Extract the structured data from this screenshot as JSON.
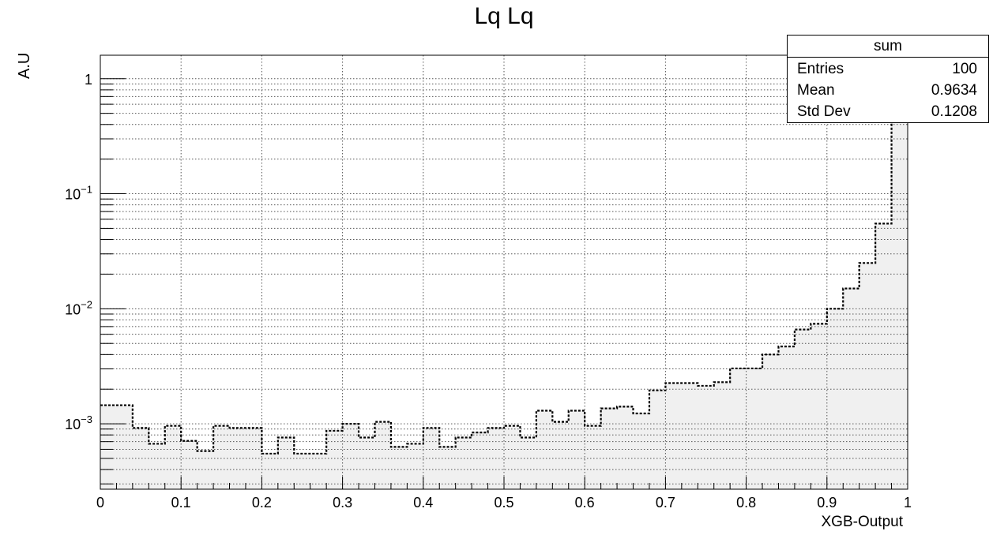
{
  "chart_data": {
    "type": "histogram",
    "title": "Lq Lq",
    "xlabel": "XGB-Output",
    "ylabel": "A.U",
    "xlim": [
      0,
      1
    ],
    "ylim": [
      0.00027,
      1.6
    ],
    "yscale": "log",
    "grid": true,
    "fill_color": "#f0f0f0",
    "line_style": "dashed",
    "bin_width": 0.02,
    "x_ticks": [
      "0",
      "0.1",
      "0.2",
      "0.3",
      "0.4",
      "0.5",
      "0.6",
      "0.7",
      "0.8",
      "0.9",
      "1"
    ],
    "y_ticks": [
      {
        "base": "1",
        "exp": ""
      },
      {
        "base": "10",
        "exp": "−1"
      },
      {
        "base": "10",
        "exp": "−2"
      },
      {
        "base": "10",
        "exp": "−3"
      }
    ],
    "bin_edges": [
      0,
      0.02,
      0.04,
      0.06,
      0.08,
      0.1,
      0.12,
      0.14,
      0.16,
      0.18,
      0.2,
      0.22,
      0.24,
      0.26,
      0.28,
      0.3,
      0.32,
      0.34,
      0.36,
      0.38,
      0.4,
      0.42,
      0.44,
      0.46,
      0.48,
      0.5,
      0.52,
      0.54,
      0.56,
      0.58,
      0.6,
      0.62,
      0.64,
      0.66,
      0.68,
      0.7,
      0.72,
      0.74,
      0.76,
      0.78,
      0.8,
      0.82,
      0.84,
      0.86,
      0.88,
      0.9,
      0.92,
      0.94,
      0.96,
      0.98,
      1.0
    ],
    "series": [
      {
        "name": "sum",
        "values": [
          0.00145,
          0.00145,
          0.00092,
          0.00067,
          0.00096,
          0.00071,
          0.00058,
          0.00096,
          0.00092,
          0.00092,
          0.00055,
          0.00076,
          0.00055,
          0.00055,
          0.00087,
          0.001,
          0.00076,
          0.00104,
          0.00063,
          0.00067,
          0.00092,
          0.00063,
          0.00076,
          0.00084,
          0.00092,
          0.00096,
          0.00076,
          0.0013,
          0.00104,
          0.0013,
          0.00096,
          0.00136,
          0.00141,
          0.00123,
          0.00195,
          0.00226,
          0.00226,
          0.00214,
          0.0023,
          0.00303,
          0.00303,
          0.004,
          0.0047,
          0.0066,
          0.0074,
          0.01,
          0.015,
          0.025,
          0.055,
          0.42
        ]
      }
    ],
    "stats": {
      "name": "sum",
      "rows": [
        {
          "label": "Entries",
          "value": "100"
        },
        {
          "label": "Mean",
          "value": "0.9634"
        },
        {
          "label": "Std Dev",
          "value": "0.1208"
        }
      ]
    }
  }
}
